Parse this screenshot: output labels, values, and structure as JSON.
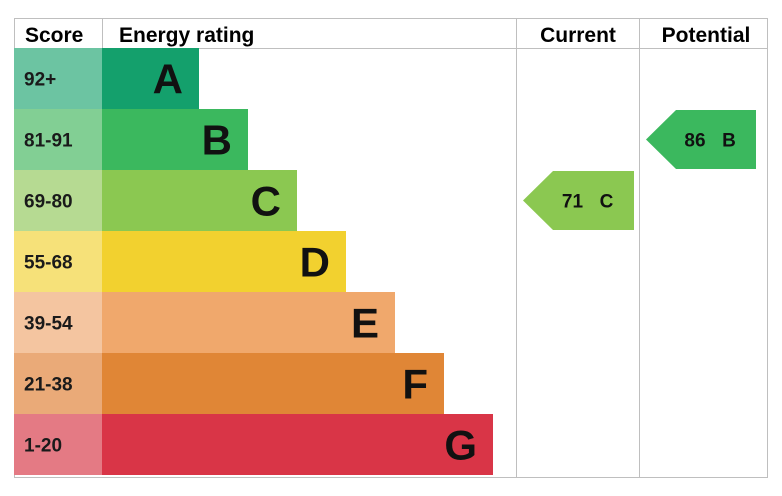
{
  "chart_data": {
    "type": "bar",
    "headers": {
      "score": "Score",
      "rating": "Energy rating",
      "current": "Current",
      "potential": "Potential"
    },
    "bands": [
      {
        "score": "92+",
        "letter": "A",
        "value": 1,
        "color": "#14a06c",
        "score_color": "#6cc4a2"
      },
      {
        "score": "81-91",
        "letter": "B",
        "value": 2,
        "color": "#3bb85e",
        "score_color": "#82cf94"
      },
      {
        "score": "69-80",
        "letter": "C",
        "value": 3,
        "color": "#8bc851",
        "score_color": "#b6da92"
      },
      {
        "score": "55-68",
        "letter": "D",
        "value": 4,
        "color": "#f2d12f",
        "score_color": "#f6e179"
      },
      {
        "score": "39-54",
        "letter": "E",
        "value": 5,
        "color": "#f0a86c",
        "score_color": "#f4c5a0"
      },
      {
        "score": "21-38",
        "letter": "F",
        "value": 6,
        "color": "#e08636",
        "score_color": "#eaaa78"
      },
      {
        "score": "1-20",
        "letter": "G",
        "value": 7,
        "color": "#d93547",
        "score_color": "#e47a84"
      }
    ],
    "current": {
      "value": "71",
      "letter": "C",
      "color": "#8bc851"
    },
    "potential": {
      "value": "86",
      "letter": "B",
      "color": "#3bb85e"
    }
  }
}
